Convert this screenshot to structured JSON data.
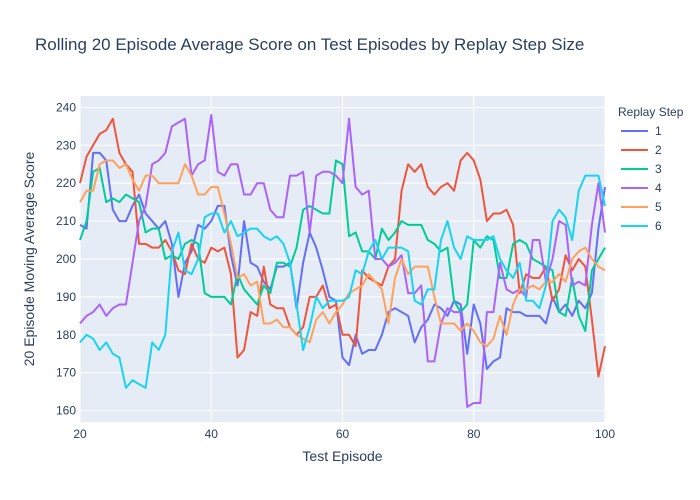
{
  "chart_data": {
    "type": "line",
    "title": "Rolling 20 Episode Average Score on Test Episodes by Replay Step Size",
    "xlabel": "Test Episode",
    "ylabel": "20 Episode Moving Average Score",
    "xlim": [
      20,
      100
    ],
    "ylim": [
      157,
      243
    ],
    "xticks": [
      20,
      40,
      60,
      80,
      100
    ],
    "yticks": [
      160,
      170,
      180,
      190,
      200,
      210,
      220,
      230,
      240
    ],
    "grid": true,
    "legend_title": "Replay Step",
    "legend_position": "right",
    "x": [
      20,
      21,
      22,
      23,
      24,
      25,
      26,
      27,
      28,
      29,
      30,
      31,
      32,
      33,
      34,
      35,
      36,
      37,
      38,
      39,
      40,
      41,
      42,
      43,
      44,
      45,
      46,
      47,
      48,
      49,
      50,
      51,
      52,
      53,
      54,
      55,
      56,
      57,
      58,
      59,
      60,
      61,
      62,
      63,
      64,
      65,
      66,
      67,
      68,
      69,
      70,
      71,
      72,
      73,
      74,
      75,
      76,
      77,
      78,
      79,
      80,
      81,
      82,
      83,
      84,
      85,
      86,
      87,
      88,
      89,
      90,
      91,
      92,
      93,
      94,
      95,
      96,
      97,
      98,
      99,
      100
    ],
    "series": [
      {
        "name": "1",
        "color": "#636efa",
        "values": [
          209,
          208,
          228,
          228,
          226,
          213,
          210,
          210,
          214,
          217,
          212,
          210,
          208,
          210,
          204,
          190,
          199,
          202,
          209,
          208,
          210,
          214,
          214,
          201,
          193,
          210,
          199,
          198,
          194,
          192,
          198,
          198,
          199,
          187,
          199,
          207,
          203,
          197,
          190,
          189,
          174,
          172,
          180,
          175,
          176,
          176,
          180,
          186,
          187,
          186,
          185,
          178,
          182,
          184,
          188,
          187,
          185,
          189,
          188,
          175,
          188,
          183,
          171,
          173,
          174,
          187,
          186,
          186,
          185,
          185,
          185,
          183,
          190,
          186,
          188,
          185,
          189,
          187,
          191,
          208,
          219
        ]
      },
      {
        "name": "2",
        "color": "#ef553b",
        "values": [
          220,
          227,
          230,
          233,
          234,
          237,
          228,
          225,
          223,
          204,
          204,
          203,
          203,
          205,
          202,
          197,
          196,
          204,
          200,
          199,
          203,
          202,
          203,
          196,
          174,
          176,
          186,
          185,
          198,
          188,
          187,
          187,
          182,
          180,
          182,
          190,
          190,
          193,
          187,
          188,
          180,
          180,
          177,
          197,
          195,
          194,
          193,
          198,
          200,
          218,
          225,
          223,
          225,
          219,
          217,
          219,
          220,
          218,
          226,
          228,
          226,
          221,
          210,
          212,
          212,
          213,
          209,
          191,
          196,
          195,
          195,
          198,
          189,
          192,
          201,
          197,
          200,
          198,
          184,
          169,
          177
        ]
      },
      {
        "name": "3",
        "color": "#00cc96",
        "values": [
          205,
          210,
          223,
          224,
          215,
          216,
          215,
          217,
          216,
          215,
          207,
          208,
          208,
          200,
          201,
          200,
          204,
          205,
          204,
          191,
          190,
          190,
          190,
          188,
          196,
          192,
          190,
          188,
          193,
          191,
          199,
          199,
          198,
          203,
          213,
          214,
          213,
          212,
          212,
          226,
          225,
          206,
          207,
          202,
          202,
          200,
          208,
          205,
          207,
          210,
          209,
          209,
          209,
          205,
          204,
          202,
          203,
          189,
          186,
          188,
          205,
          203,
          206,
          205,
          195,
          195,
          204,
          205,
          204,
          200,
          199,
          198,
          197,
          186,
          185,
          195,
          185,
          181,
          197,
          200,
          203
        ]
      },
      {
        "name": "4",
        "color": "#ab63fa",
        "values": [
          183,
          185,
          186,
          188,
          185,
          187,
          188,
          188,
          199,
          210,
          214,
          225,
          226,
          228,
          235,
          236,
          237,
          222,
          225,
          226,
          238,
          223,
          222,
          225,
          225,
          217,
          217,
          220,
          220,
          213,
          211,
          211,
          222,
          222,
          223,
          207,
          222,
          223,
          223,
          222,
          220,
          237,
          219,
          217,
          218,
          200,
          200,
          198,
          199,
          201,
          191,
          191,
          193,
          173,
          173,
          183,
          187,
          186,
          186,
          161,
          162,
          162,
          186,
          186,
          199,
          192,
          191,
          192,
          190,
          205,
          205,
          194,
          200,
          210,
          209,
          193,
          194,
          193,
          209,
          220,
          207
        ]
      },
      {
        "name": "5",
        "color": "#ffa15a",
        "values": [
          215,
          218,
          218,
          225,
          226,
          226,
          224,
          225,
          221,
          218,
          222,
          222,
          220,
          220,
          220,
          220,
          225,
          222,
          217,
          217,
          219,
          219,
          212,
          204,
          195,
          196,
          193,
          194,
          183,
          183,
          184,
          182,
          182,
          180,
          179,
          178,
          184,
          186,
          183,
          186,
          188,
          191,
          192,
          193,
          196,
          194,
          192,
          183,
          195,
          200,
          196,
          198,
          198,
          198,
          190,
          183,
          183,
          183,
          181,
          183,
          181,
          178,
          177,
          179,
          185,
          180,
          188,
          192,
          192,
          193,
          192,
          194,
          194,
          196,
          194,
          200,
          202,
          203,
          200,
          198,
          197
        ]
      },
      {
        "name": "6",
        "color": "#19d3f3",
        "values": [
          178,
          180,
          179,
          176,
          178,
          175,
          174,
          166,
          168,
          167,
          166,
          178,
          176,
          180,
          202,
          207,
          197,
          196,
          200,
          211,
          212,
          212,
          207,
          210,
          206,
          207,
          208,
          208,
          206,
          205,
          206,
          204,
          199,
          188,
          176,
          182,
          190,
          187,
          189,
          189,
          189,
          190,
          197,
          196,
          202,
          205,
          200,
          203,
          203,
          203,
          202,
          189,
          188,
          192,
          192,
          205,
          210,
          203,
          200,
          206,
          205,
          205,
          205,
          206,
          200,
          197,
          195,
          199,
          189,
          189,
          187,
          193,
          210,
          213,
          211,
          205,
          218,
          222,
          222,
          222,
          214
        ]
      }
    ]
  }
}
